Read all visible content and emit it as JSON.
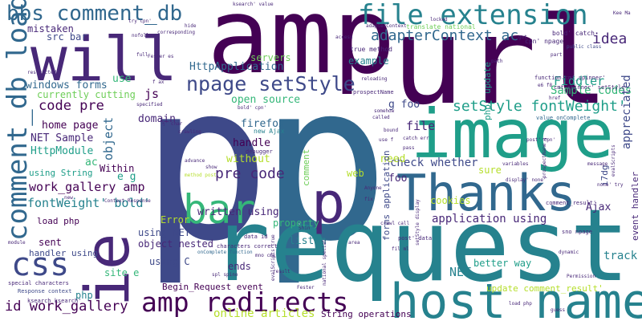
{
  "palette": [
    "#440154",
    "#482878",
    "#3e4989",
    "#31688e",
    "#26828e",
    "#1f9e89",
    "#35b779",
    "#6ece58",
    "#b5de2b",
    "#fde725"
  ],
  "words": [
    {
      "text": "p",
      "c": 2
    },
    {
      "text": "p",
      "c": 3
    },
    {
      "text": "request",
      "c": 4
    },
    {
      "text": "url",
      "c": 0
    },
    {
      "text": "amp",
      "c": 0
    },
    {
      "text": "image",
      "c": 5
    },
    {
      "text": "will",
      "c": 1
    },
    {
      "text": "ie",
      "c": 1
    },
    {
      "text": "host name",
      "c": 4
    },
    {
      "text": "Thanks",
      "c": 3
    },
    {
      "text": "p",
      "c": 1
    },
    {
      "text": "css",
      "c": 2
    },
    {
      "text": "bar",
      "c": 6
    },
    {
      "text": "amp redirects",
      "c": 0
    },
    {
      "text": "comment_db load",
      "c": 3
    },
    {
      "text": "bbs comment_db",
      "c": 3
    },
    {
      "text": "file extension",
      "c": 4
    },
    {
      "text": "npage setStyle",
      "c": 2
    },
    {
      "text": "setStyle fontWeight'",
      "c": 5
    },
    {
      "text": "adapterContext ac",
      "c": 3
    },
    {
      "text": "idea",
      "c": 1
    },
    {
      "text": "code pre",
      "c": 0
    },
    {
      "text": "pre code",
      "c": 1
    },
    {
      "text": "work_gallery amp",
      "c": 0
    },
    {
      "text": "fontWeight' bold'",
      "c": 4
    },
    {
      "text": "id work_gallery",
      "c": 0
    },
    {
      "text": "HttpApplication",
      "c": 3
    },
    {
      "text": "Fiddler",
      "c": 5
    },
    {
      "text": "Sample codes",
      "c": 6
    },
    {
      "text": "appreciated",
      "c": 2
    },
    {
      "text": "file",
      "c": 1
    },
    {
      "text": "object",
      "c": 3
    },
    {
      "text": "written using",
      "c": 1
    },
    {
      "text": "application using",
      "c": 1
    },
    {
      "text": "check whether",
      "c": 2
    },
    {
      "text": "online articles",
      "c": 8
    },
    {
      "text": "NET",
      "c": 4
    },
    {
      "text": "track",
      "c": 4
    },
    {
      "text": "js",
      "c": 0
    },
    {
      "text": "php' update",
      "c": 5
    },
    {
      "text": "open source",
      "c": 6
    },
    {
      "text": "firefox",
      "c": 3
    },
    {
      "text": "domain",
      "c": 1
    },
    {
      "text": "home page",
      "c": 0
    },
    {
      "text": "NET Sample",
      "c": 1
    },
    {
      "text": "HttpModule",
      "c": 5
    },
    {
      "text": "windows forms",
      "c": 3
    },
    {
      "text": "currently cutting",
      "c": 7
    },
    {
      "text": "servers",
      "c": 7
    },
    {
      "text": "example",
      "c": 4
    },
    {
      "text": "mistaken",
      "c": 1
    },
    {
      "text": "src bar",
      "c": 2
    },
    {
      "text": "use",
      "c": 6
    },
    {
      "text": "handle",
      "c": 0
    },
    {
      "text": "without",
      "c": 8
    },
    {
      "text": "Within",
      "c": 0
    },
    {
      "text": "e g",
      "c": 5
    },
    {
      "text": "ac",
      "c": 6
    },
    {
      "text": "g foo",
      "c": 2
    },
    {
      "text": "foo",
      "c": 1
    },
    {
      "text": "need",
      "c": 8
    },
    {
      "text": "sure",
      "c": 8
    },
    {
      "text": "web",
      "c": 8
    },
    {
      "text": "cookies",
      "c": 8
    },
    {
      "text": "better way",
      "c": 5
    },
    {
      "text": "listen",
      "c": 4
    },
    {
      "text": "Ajax",
      "c": 1
    },
    {
      "text": "Error",
      "c": 8
    },
    {
      "text": "using NET",
      "c": 2
    },
    {
      "text": "object nested",
      "c": 1
    },
    {
      "text": "using C",
      "c": 2
    },
    {
      "text": "ends",
      "c": 1
    },
    {
      "text": "sent",
      "c": 0
    },
    {
      "text": "handler using",
      "c": 2
    },
    {
      "text": "site e",
      "c": 6
    },
    {
      "text": "php",
      "c": 4
    },
    {
      "text": "load php",
      "c": 0
    },
    {
      "text": "property",
      "c": 6
    },
    {
      "text": "forms application",
      "c": 2
    },
    {
      "text": "String operations",
      "c": 0
    },
    {
      "text": "Begin_Request event",
      "c": 0
    },
    {
      "text": "update comment_result'",
      "c": 8
    },
    {
      "text": "event handler",
      "c": 1
    },
    {
      "text": "i7dg",
      "c": 2
    },
    {
      "text": "comment",
      "c": 7
    },
    {
      "text": "using String",
      "c": 5
    },
    {
      "text": "bold' catch",
      "c": 1
    },
    {
      "text": "cpn' npage",
      "c": 1
    },
    {
      "text": "cmt_spinner' setStyle",
      "c": 1
    },
    {
      "text": "true method",
      "c": 1
    },
    {
      "text": "prospectName",
      "c": 1
    },
    {
      "text": "value onComplete",
      "c": 3
    },
    {
      "text": "special characters",
      "c": 1
    },
    {
      "text": "ksearch ksearch'",
      "c": 1
    },
    {
      "text": "Response context",
      "c": 2
    },
    {
      "text": "onComplete function",
      "c": 3
    },
    {
      "text": "data id",
      "c": 1
    },
    {
      "text": "characters correct",
      "c": 1
    },
    {
      "text": "new Ajax",
      "c": 4
    },
    {
      "text": "debugger",
      "c": 1
    },
    {
      "text": "mno cmx",
      "c": 1
    },
    {
      "text": "spl spino",
      "c": 1
    },
    {
      "text": "evalScripts true",
      "c": 1
    },
    {
      "text": "national special",
      "c": 1
    },
    {
      "text": "comment_result'",
      "c": 1
    },
    {
      "text": "sno npage",
      "c": 1
    },
    {
      "text": "post' data",
      "c": 1
    },
    {
      "text": "setStyle display",
      "c": 1
    },
    {
      "text": "ksearch' value",
      "c": 1
    },
    {
      "text": "adapterContext",
      "c": 1
    },
    {
      "text": "translate national",
      "c": 7
    },
    {
      "text": "public class",
      "c": 2
    },
    {
      "text": "function cmt_spinner'",
      "c": 1
    },
    {
      "text": "try cpn'",
      "c": 1
    },
    {
      "text": "corresponding",
      "c": 1
    },
    {
      "text": "reloading",
      "c": 1
    },
    {
      "text": "Fester es",
      "c": 1
    },
    {
      "text": "f ax",
      "c": 1
    },
    {
      "text": "bold' cpn'",
      "c": 1
    },
    {
      "text": "½' char",
      "c": 1
    },
    {
      "text": "crawling",
      "c": 1
    },
    {
      "text": "use f",
      "c": 1
    },
    {
      "text": "catch err",
      "c": 1
    },
    {
      "text": "pass",
      "c": 1
    },
    {
      "text": "post' cpn'",
      "c": 1
    },
    {
      "text": "display' none'",
      "c": 1
    },
    {
      "text": "evalScripts",
      "c": 1
    },
    {
      "text": "none' try",
      "c": 1
    },
    {
      "text": "method post",
      "c": 8
    },
    {
      "text": "Context Response",
      "c": 1
    },
    {
      "text": "Permission",
      "c": 1
    },
    {
      "text": "load php",
      "c": 1
    },
    {
      "text": "Fester",
      "c": 1
    },
    {
      "text": "result",
      "c": 1
    },
    {
      "text": "Anyone",
      "c": 1
    },
    {
      "text": "called",
      "c": 1
    },
    {
      "text": "somehow",
      "c": 1
    },
    {
      "text": "access",
      "c": 1
    },
    {
      "text": "e6 f8",
      "c": 1
    },
    {
      "text": "href",
      "c": 1
    },
    {
      "text": "restricted",
      "c": 1
    },
    {
      "text": "specified",
      "c": 1
    },
    {
      "text": "nofollow",
      "c": 1
    },
    {
      "text": "full",
      "c": 1
    },
    {
      "text": "hide",
      "c": 1
    },
    {
      "text": "advance",
      "c": 1
    },
    {
      "text": "show",
      "c": 1
    },
    {
      "text": "variables",
      "c": 1
    },
    {
      "text": "message",
      "c": 1
    },
    {
      "text": "dynamic",
      "c": 1
    },
    {
      "text": "module",
      "c": 1
    },
    {
      "text": "area",
      "c": 1
    },
    {
      "text": "guess",
      "c": 1
    },
    {
      "text": "Shin",
      "c": 1
    },
    {
      "text": "fix",
      "c": 1
    },
    {
      "text": "new",
      "c": 1
    },
    {
      "text": "got",
      "c": 1
    },
    {
      "text": "part",
      "c": 1
    },
    {
      "text": "path",
      "c": 1
    },
    {
      "text": "bound",
      "c": 1
    },
    {
      "text": "fil ml",
      "c": 1
    },
    {
      "text": "locked",
      "c": 1
    },
    {
      "text": "prospectName g",
      "c": 1
    },
    {
      "text": "crawl call",
      "c": 1
    },
    {
      "text": "Kee Ma",
      "c": 1
    }
  ]
}
